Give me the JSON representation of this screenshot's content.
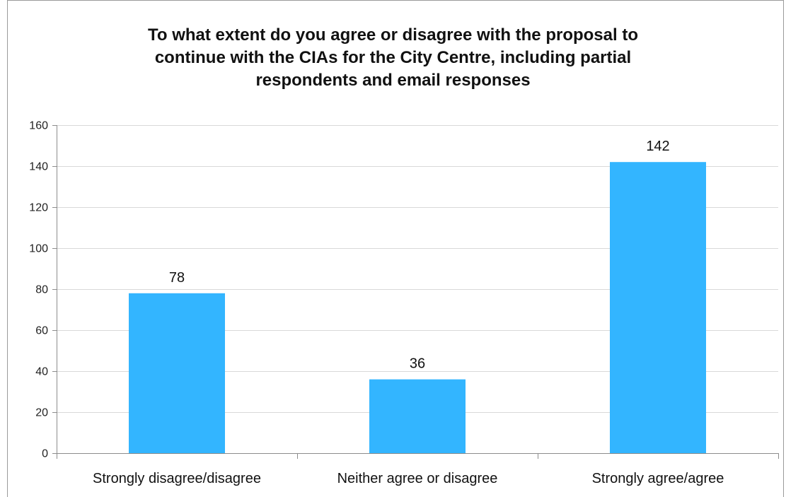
{
  "chart_data": {
    "type": "bar",
    "title_lines": [
      "To what extent do you agree or disagree with the proposal to",
      "continue with the CIAs for the City Centre, including partial",
      "respondents and email responses"
    ],
    "categories": [
      "Strongly disagree/disagree",
      "Neither agree or disagree",
      "Strongly agree/agree"
    ],
    "values": [
      78,
      36,
      142
    ],
    "data_labels": [
      "78",
      "36",
      "142"
    ],
    "y_ticks": [
      0,
      20,
      40,
      60,
      80,
      100,
      120,
      140,
      160
    ],
    "ylim": [
      0,
      160
    ],
    "xlabel": "",
    "ylabel": "",
    "grid": true,
    "legend": "none",
    "bar_color": "#33b5ff",
    "grid_color": "#d9d9d9",
    "axis_color": "#8c8c8c"
  }
}
